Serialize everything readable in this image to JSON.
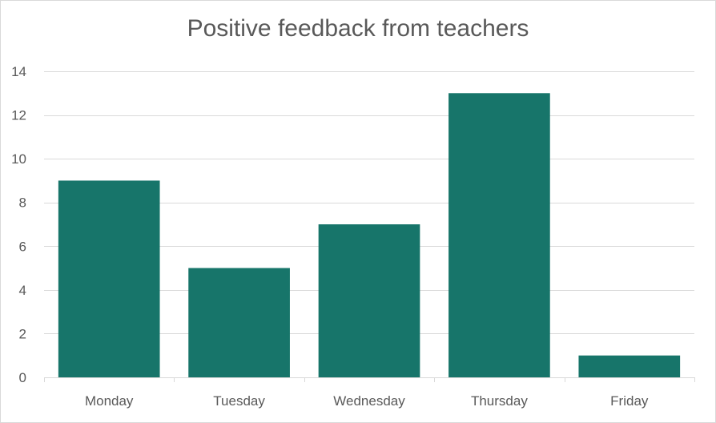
{
  "chart_data": {
    "type": "bar",
    "title": "Positive feedback from teachers",
    "xlabel": "",
    "ylabel": "",
    "categories": [
      "Monday",
      "Tuesday",
      "Wednesday",
      "Thursday",
      "Friday"
    ],
    "values": [
      9,
      5,
      7,
      13,
      1
    ],
    "ylim": [
      0,
      14
    ],
    "yticks": [
      0,
      2,
      4,
      6,
      8,
      10,
      12,
      14
    ],
    "grid": true,
    "legend": "none",
    "bar_color": "#17756A",
    "gridline_color": "#d9d9d9",
    "text_color": "#595959"
  }
}
